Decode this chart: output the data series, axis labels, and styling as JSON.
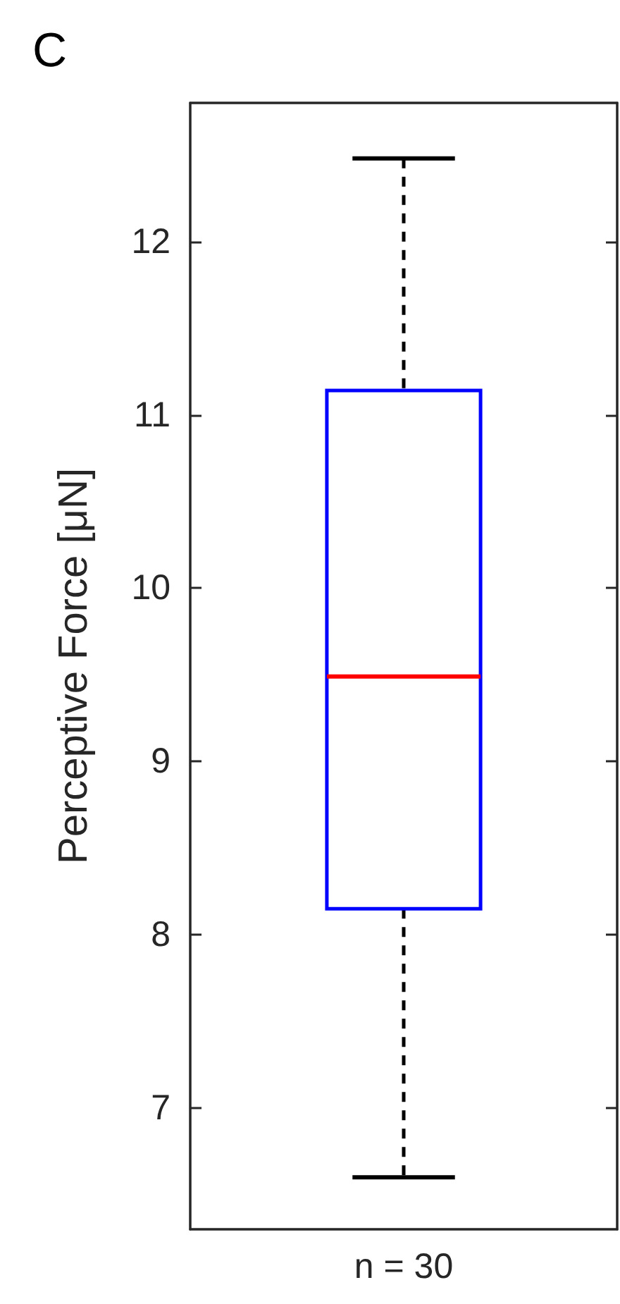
{
  "chart_data": {
    "type": "box",
    "title": "C",
    "ylabel": "Perceptive Force [μN]",
    "categories": [
      "n = 30"
    ],
    "boxes": [
      {
        "low": 6.6,
        "q1": 8.15,
        "median": 9.49,
        "q3": 11.14,
        "high": 12.48
      }
    ],
    "color": "#0000ff",
    "line_style": "dashed",
    "ylim": [
      6.3,
      12.8
    ],
    "yticks": [
      7,
      8,
      9,
      10,
      11,
      12
    ],
    "grid": false
  }
}
